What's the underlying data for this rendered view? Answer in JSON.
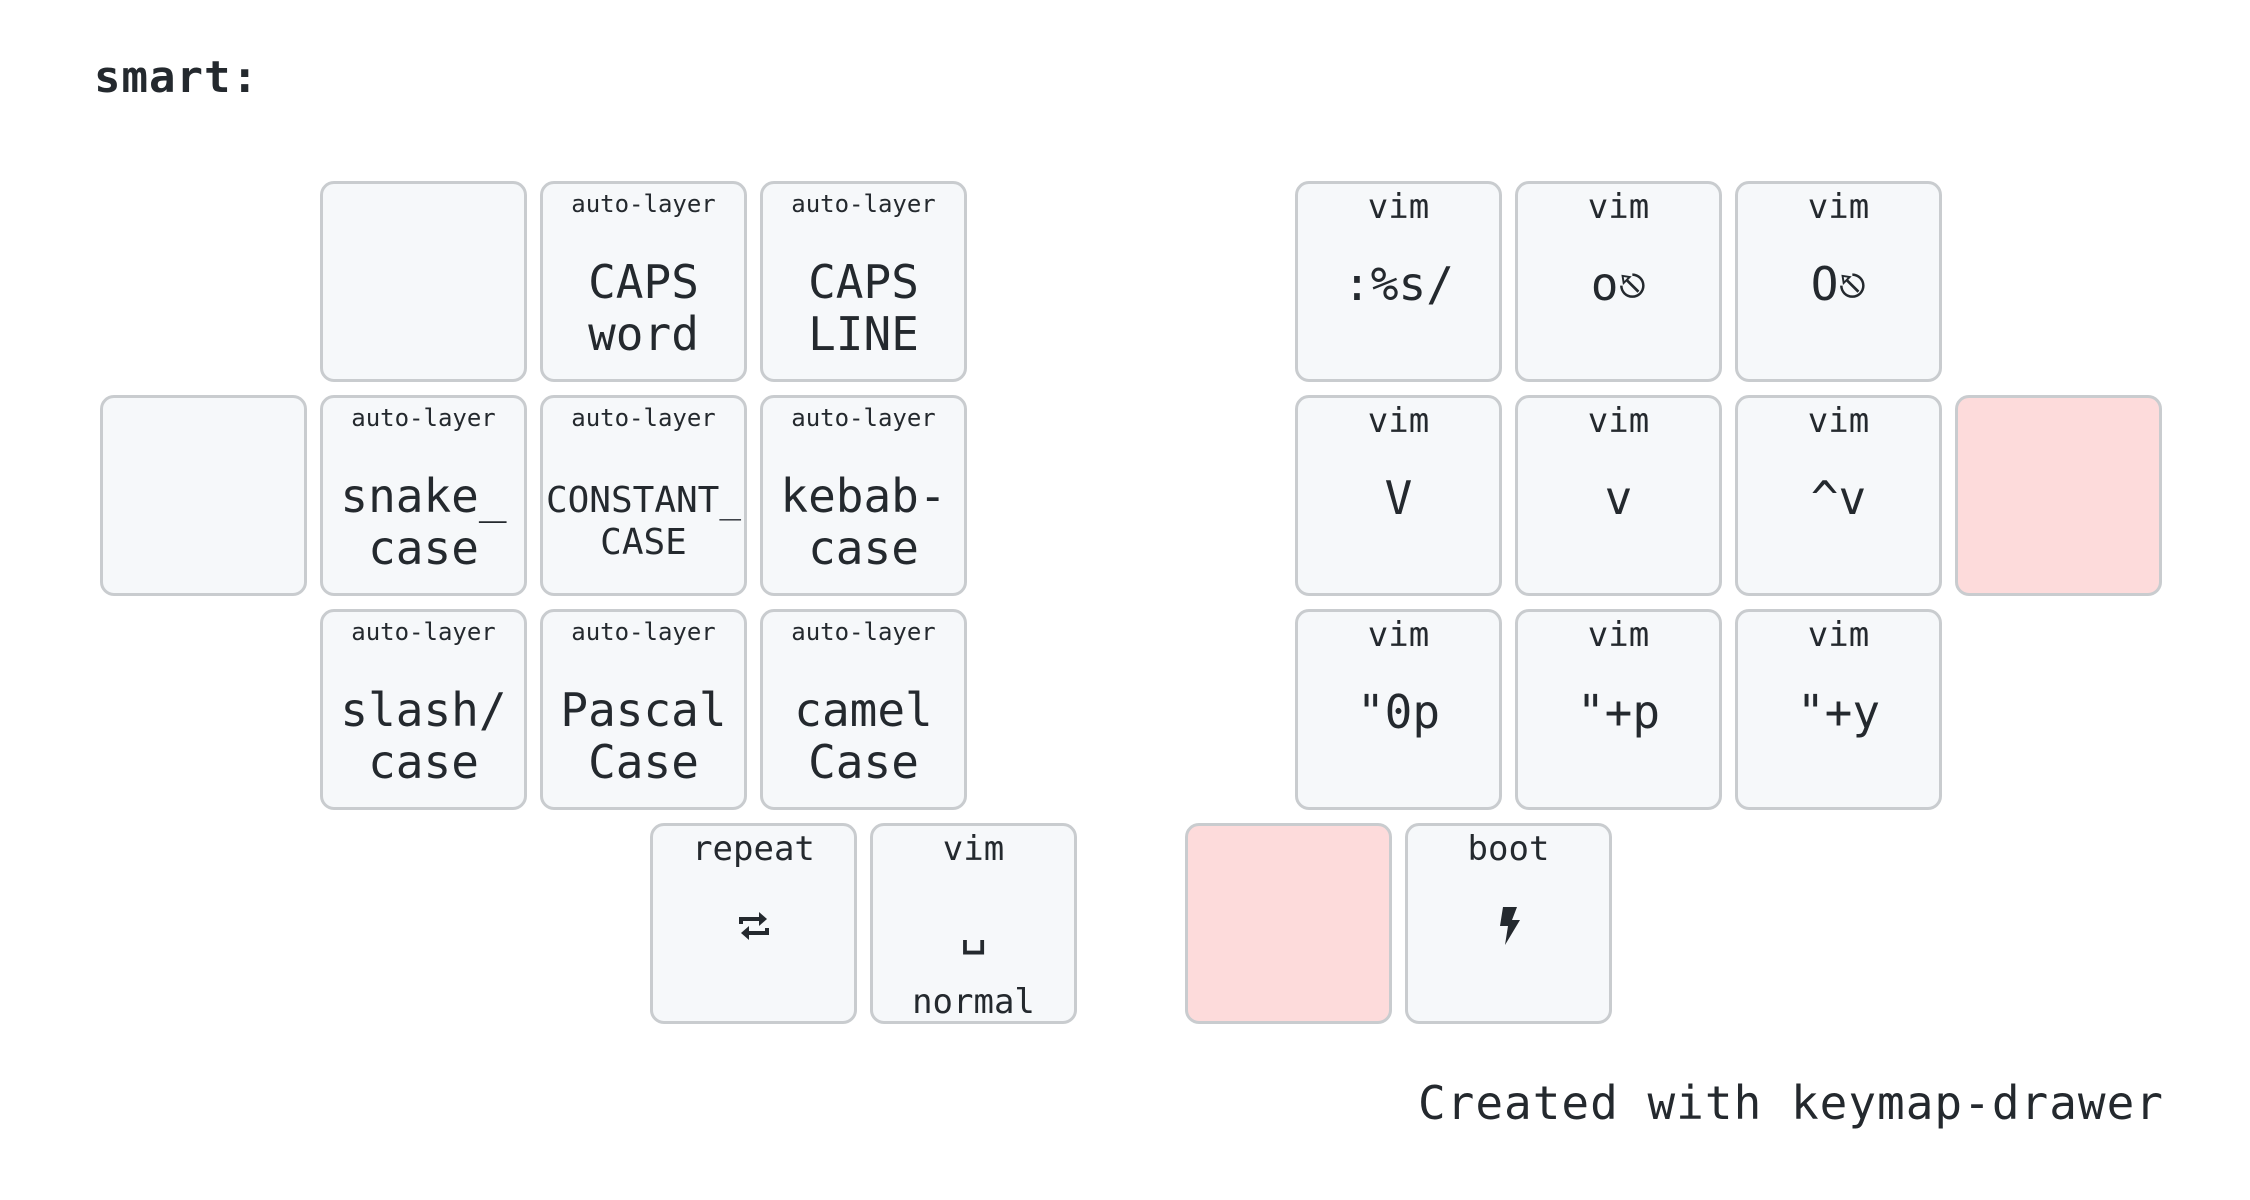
{
  "layer": {
    "title": "smart:"
  },
  "keys": {
    "l_top_1": {
      "hold": "",
      "tap": ""
    },
    "l_top_2": {
      "hold": "auto-layer",
      "tap": "CAPS\nword"
    },
    "l_top_3": {
      "hold": "auto-layer",
      "tap": "CAPS\nLINE"
    },
    "l_home_0": {
      "hold": "",
      "tap": ""
    },
    "l_home_1": {
      "hold": "auto-layer",
      "tap": "snake_\ncase"
    },
    "l_home_2": {
      "hold": "auto-layer",
      "tap": "CONSTANT_\nCASE"
    },
    "l_home_3": {
      "hold": "auto-layer",
      "tap": "kebab-\ncase"
    },
    "l_bot_1": {
      "hold": "auto-layer",
      "tap": "slash/\ncase"
    },
    "l_bot_2": {
      "hold": "auto-layer",
      "tap": "Pascal\nCase"
    },
    "l_bot_3": {
      "hold": "auto-layer",
      "tap": "camel\nCase"
    },
    "l_thumb_1": {
      "hold": "repeat",
      "tap": "",
      "icon": "repeat-icon"
    },
    "l_thumb_2": {
      "hold": "vim",
      "tap": "␣",
      "bottom": "normal"
    },
    "r_top_1": {
      "hold": "vim",
      "tap": ":%s/"
    },
    "r_top_2": {
      "hold": "vim",
      "tap": "o⎋"
    },
    "r_top_3": {
      "hold": "vim",
      "tap": "O⎋"
    },
    "r_home_1": {
      "hold": "vim",
      "tap": "V"
    },
    "r_home_2": {
      "hold": "vim",
      "tap": "v"
    },
    "r_home_3": {
      "hold": "vim",
      "tap": "^v"
    },
    "r_home_4": {
      "hold": "",
      "tap": "",
      "state": "held"
    },
    "r_bot_1": {
      "hold": "vim",
      "tap": "\"0p"
    },
    "r_bot_2": {
      "hold": "vim",
      "tap": "\"+p"
    },
    "r_bot_3": {
      "hold": "vim",
      "tap": "\"+y"
    },
    "r_thumb_1": {
      "hold": "",
      "tap": "",
      "state": "held"
    },
    "r_thumb_2": {
      "hold": "boot",
      "tap": "",
      "icon": "bolt-icon"
    }
  },
  "colors": {
    "key_fill": "#f6f8fa",
    "key_border": "#c9cccf",
    "held_fill": "#fddbdb",
    "text": "#24292e"
  },
  "footer": {
    "credit": "Created with keymap-drawer"
  }
}
